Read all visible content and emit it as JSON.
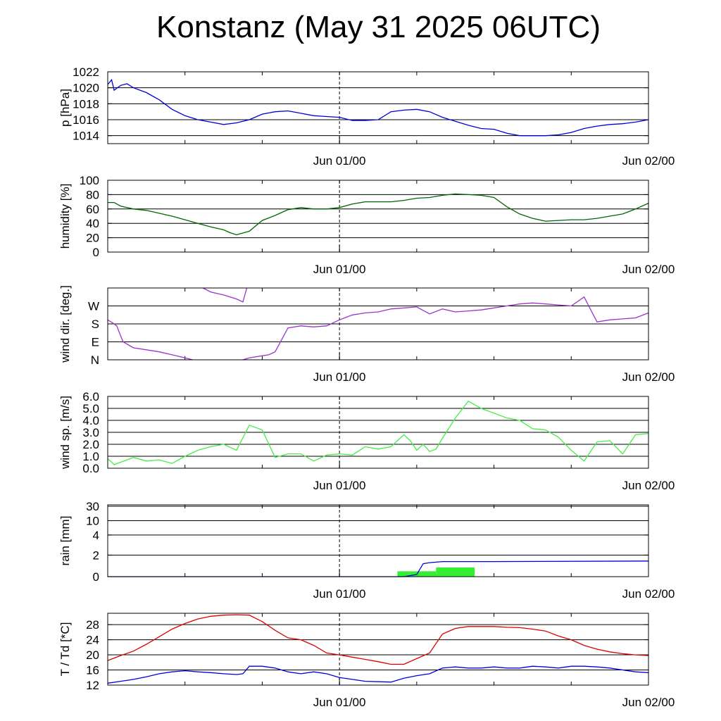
{
  "title": "Konstanz (May 31 2025 06UTC)",
  "chart_data": [
    {
      "type": "line",
      "ylabel": "p [hPa]",
      "ylim": [
        1013,
        1022
      ],
      "yticks": [
        {
          "v": 1014,
          "label": "1014"
        },
        {
          "v": 1016,
          "label": "1016"
        },
        {
          "v": 1018,
          "label": "1018"
        },
        {
          "v": 1020,
          "label": "1020"
        },
        {
          "v": 1022,
          "label": "1022"
        }
      ],
      "xlim": [
        0,
        42
      ],
      "xticks": [
        {
          "v": 18,
          "label": "Jun 01/00"
        },
        {
          "v": 42,
          "label": "Jun 02/00"
        }
      ],
      "grid": true,
      "series": [
        {
          "color": "#0000dd",
          "x": [
            0,
            0.3,
            0.5,
            1,
            1.5,
            2,
            3,
            4,
            5,
            6,
            7,
            8,
            9,
            10,
            11,
            12,
            13,
            14,
            15,
            16,
            17,
            18,
            19,
            20,
            21,
            22,
            23,
            24,
            25,
            26,
            27,
            28,
            29,
            30,
            31,
            32,
            33,
            34,
            35,
            36,
            37,
            38,
            39,
            40,
            41,
            42
          ],
          "y": [
            1020.4,
            1021,
            1019.7,
            1020.3,
            1020.5,
            1020.0,
            1019.4,
            1018.5,
            1017.3,
            1016.5,
            1016.0,
            1015.7,
            1015.4,
            1015.6,
            1016.0,
            1016.7,
            1017.0,
            1017.1,
            1016.8,
            1016.5,
            1016.4,
            1016.3,
            1015.9,
            1015.9,
            1016.0,
            1017.0,
            1017.2,
            1017.3,
            1017.0,
            1016.3,
            1015.8,
            1015.3,
            1014.9,
            1014.8,
            1014.3,
            1014.0,
            1014.0,
            1014.0,
            1014.1,
            1014.4,
            1014.9,
            1015.2,
            1015.4,
            1015.5,
            1015.7,
            1016.0
          ]
        }
      ]
    },
    {
      "type": "line",
      "ylabel": "humidity [%]",
      "ylim": [
        0,
        100
      ],
      "yticks": [
        {
          "v": 0,
          "label": "0"
        },
        {
          "v": 20,
          "label": "20"
        },
        {
          "v": 40,
          "label": "40"
        },
        {
          "v": 60,
          "label": "60"
        },
        {
          "v": 80,
          "label": "80"
        },
        {
          "v": 100,
          "label": "100"
        }
      ],
      "xlim": [
        0,
        42
      ],
      "xticks": [
        {
          "v": 18,
          "label": "Jun 01/00"
        },
        {
          "v": 42,
          "label": "Jun 02/00"
        }
      ],
      "grid": true,
      "series": [
        {
          "color": "#006600",
          "x": [
            0,
            0.5,
            1,
            2,
            3,
            4,
            5,
            6,
            7,
            8,
            9,
            9.5,
            10,
            11,
            12,
            13,
            14,
            15,
            16,
            17,
            18,
            19,
            20,
            21,
            22,
            23,
            24,
            25,
            26,
            27,
            28,
            29,
            30,
            31,
            32,
            33,
            34,
            35,
            36,
            37,
            38,
            39,
            40,
            41,
            42
          ],
          "y": [
            69,
            69,
            64,
            60,
            58,
            54,
            50,
            45,
            40,
            35,
            31,
            27,
            24,
            29,
            44,
            51,
            59,
            62,
            60,
            60,
            62,
            67,
            70,
            70,
            70,
            72,
            75,
            76,
            79,
            81,
            80,
            79,
            76,
            63,
            53,
            47,
            43,
            44,
            45,
            45,
            47,
            50,
            53,
            60,
            68
          ]
        }
      ]
    },
    {
      "type": "line",
      "ylabel": "wind dir. [deg.]",
      "ylim": [
        0,
        360
      ],
      "yticks": [
        {
          "v": 0,
          "label": "N"
        },
        {
          "v": 90,
          "label": "E"
        },
        {
          "v": 180,
          "label": "S"
        },
        {
          "v": 270,
          "label": "W"
        }
      ],
      "xlim": [
        0,
        42
      ],
      "xticks": [
        {
          "v": 18,
          "label": "Jun 01/00"
        },
        {
          "v": 42,
          "label": "Jun 02/00"
        }
      ],
      "grid": true,
      "series": [
        {
          "color": "#9933cc",
          "x": [
            0,
            0.5,
            0.7,
            1,
            1.2,
            2,
            3,
            4,
            5,
            6,
            6.6
          ],
          "y": [
            200,
            180,
            170,
            120,
            90,
            60,
            50,
            40,
            25,
            10,
            0
          ]
        },
        {
          "color": "#9933cc",
          "x": [
            7.4,
            8,
            9,
            10,
            10.5,
            10.8
          ],
          "y": [
            360,
            340,
            325,
            305,
            290,
            360
          ]
        },
        {
          "color": "#9933cc",
          "x": [
            10.5,
            11,
            12,
            12.5,
            13,
            14,
            15,
            16,
            17,
            18,
            19,
            20,
            21,
            22,
            23,
            24,
            25,
            26,
            27,
            28,
            29,
            30,
            31,
            32,
            33,
            34,
            35,
            36,
            37,
            38,
            39,
            40,
            41,
            42
          ],
          "y": [
            0,
            10,
            20,
            25,
            40,
            160,
            170,
            165,
            170,
            200,
            225,
            235,
            240,
            255,
            260,
            265,
            230,
            255,
            240,
            245,
            250,
            260,
            270,
            280,
            285,
            280,
            275,
            270,
            315,
            190,
            200,
            205,
            210,
            235
          ]
        }
      ]
    },
    {
      "type": "line",
      "ylabel": "wind sp. [m/s]",
      "ylim": [
        0,
        6
      ],
      "yticks": [
        {
          "v": 0,
          "label": "0.0"
        },
        {
          "v": 1,
          "label": "1.0"
        },
        {
          "v": 2,
          "label": "2.0"
        },
        {
          "v": 3,
          "label": "3.0"
        },
        {
          "v": 4,
          "label": "4.0"
        },
        {
          "v": 5,
          "label": "5.0"
        },
        {
          "v": 6,
          "label": "6.0"
        }
      ],
      "xlim": [
        0,
        42
      ],
      "xticks": [
        {
          "v": 18,
          "label": "Jun 01/00"
        },
        {
          "v": 42,
          "label": "Jun 02/00"
        }
      ],
      "grid": true,
      "series": [
        {
          "color": "#44ee44",
          "x": [
            0,
            0.5,
            1,
            1.5,
            2,
            3,
            4,
            5,
            6,
            7,
            8,
            9,
            10,
            11,
            12,
            13,
            14,
            15,
            16,
            17,
            18,
            19,
            20,
            21,
            22,
            23,
            23.5,
            24,
            24.5,
            25,
            25.5,
            26,
            27,
            28,
            29,
            30,
            31,
            32,
            33,
            34,
            35,
            36,
            37,
            38,
            39,
            40,
            41,
            42
          ],
          "y": [
            0.8,
            0.3,
            0.5,
            0.7,
            0.9,
            0.6,
            0.7,
            0.4,
            1.0,
            1.5,
            1.8,
            2.0,
            1.5,
            3.6,
            3.2,
            0.9,
            1.2,
            1.2,
            0.6,
            1.1,
            1.2,
            1.1,
            1.8,
            1.6,
            1.8,
            2.8,
            2.3,
            1.5,
            2.0,
            1.4,
            1.6,
            2.5,
            4.2,
            5.6,
            5.0,
            4.6,
            4.2,
            4.0,
            3.3,
            3.2,
            2.6,
            1.5,
            0.6,
            2.2,
            2.3,
            1.2,
            2.8,
            2.9
          ]
        }
      ]
    },
    {
      "type": "line",
      "ylabel": "rain [mm]",
      "scale": "nonlinear",
      "ylim": [
        0,
        30
      ],
      "yticks": [
        {
          "v": 0,
          "label": "0"
        },
        {
          "v": 2,
          "label": "2"
        },
        {
          "v": 4,
          "label": "4"
        },
        {
          "v": 10,
          "label": "10"
        },
        {
          "v": 30,
          "label": "30"
        }
      ],
      "xlim": [
        0,
        42
      ],
      "xticks": [
        {
          "v": 18,
          "label": "Jun 01/00"
        },
        {
          "v": 42,
          "label": "Jun 02/00"
        }
      ],
      "grid": true,
      "bars": [
        {
          "x0": 22.5,
          "x1": 23.5,
          "value": 0.5,
          "color": "#33ee33"
        },
        {
          "x0": 23.5,
          "x1": 25.5,
          "value": 0.5,
          "color": "#33ee33"
        },
        {
          "x0": 25.5,
          "x1": 28.5,
          "value": 0.85,
          "color": "#33ee33"
        }
      ],
      "series": [
        {
          "color": "#0000dd",
          "x": [
            0,
            23,
            24,
            24.5,
            25,
            26,
            30,
            42
          ],
          "y": [
            0,
            0,
            0.2,
            1.2,
            1.3,
            1.4,
            1.4,
            1.45
          ]
        }
      ]
    },
    {
      "type": "line",
      "ylabel": "T / Td [*C]",
      "ylim": [
        12,
        31
      ],
      "yticks": [
        {
          "v": 12,
          "label": "12"
        },
        {
          "v": 16,
          "label": "16"
        },
        {
          "v": 20,
          "label": "20"
        },
        {
          "v": 24,
          "label": "24"
        },
        {
          "v": 28,
          "label": "28"
        }
      ],
      "xlim": [
        0,
        42
      ],
      "xticks": [
        {
          "v": 18,
          "label": "Jun 01/00"
        },
        {
          "v": 42,
          "label": "Jun 02/00"
        }
      ],
      "grid": true,
      "series": [
        {
          "color": "#dd0000",
          "x": [
            0,
            1,
            2,
            3,
            4,
            5,
            6,
            7,
            8,
            9,
            10,
            11,
            12,
            13,
            14,
            15,
            16,
            17,
            18,
            19,
            20,
            21,
            22,
            23,
            24,
            25,
            26,
            27,
            28,
            29,
            30,
            31,
            32,
            33,
            34,
            35,
            36,
            37,
            38,
            39,
            40,
            41,
            42
          ],
          "y": [
            18.5,
            19.8,
            21.0,
            22.8,
            24.8,
            26.8,
            28.3,
            29.5,
            30.2,
            30.5,
            30.6,
            30.5,
            28.8,
            26.5,
            24.5,
            24.0,
            22.5,
            20.5,
            20.0,
            19.4,
            18.8,
            18.2,
            17.5,
            17.5,
            19.0,
            20.5,
            25.5,
            27.0,
            27.5,
            27.5,
            27.5,
            27.3,
            27.2,
            26.8,
            26.3,
            25.0,
            24.0,
            22.5,
            21.5,
            20.8,
            20.3,
            20.0,
            19.8
          ]
        },
        {
          "color": "#0000dd",
          "x": [
            0,
            1,
            2,
            3,
            4,
            5,
            6,
            7,
            8,
            9,
            10,
            10.5,
            11,
            12,
            13,
            14,
            15,
            16,
            17,
            18,
            19,
            20,
            21,
            22,
            23,
            24,
            25,
            26,
            27,
            28,
            29,
            30,
            31,
            32,
            33,
            34,
            35,
            36,
            37,
            38,
            39,
            40,
            41,
            42
          ],
          "y": [
            12.5,
            13.0,
            13.5,
            14.2,
            15.0,
            15.5,
            15.8,
            15.5,
            15.3,
            15.0,
            14.8,
            15.0,
            17.0,
            17.0,
            16.5,
            15.5,
            15.0,
            15.5,
            15.0,
            14.0,
            13.5,
            13.0,
            12.9,
            12.8,
            13.8,
            14.5,
            15.0,
            16.5,
            16.8,
            16.5,
            16.5,
            16.8,
            16.5,
            16.5,
            17.0,
            16.8,
            16.5,
            17.0,
            17.0,
            16.8,
            16.5,
            16.0,
            15.5,
            15.3
          ]
        }
      ]
    }
  ]
}
